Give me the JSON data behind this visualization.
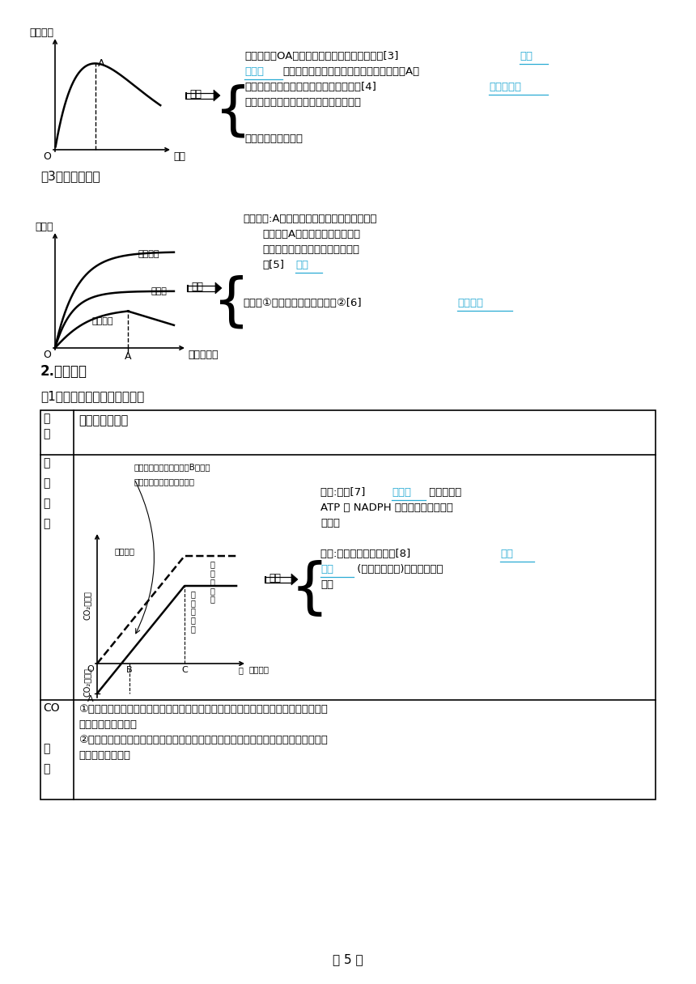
{
  "bg": "#ffffff",
  "page_num": "第 5 页",
  "cyan": "#29ABD4",
  "black": "#000000",
  "g1_ylabel": "光合速率",
  "g1_xlabel": "叶龄",
  "g2_ylabel": "物质量",
  "g2_xlabel": "叶面积指数",
  "g2_labels": [
    "总光合量",
    "呼吸量",
    "干物质量"
  ],
  "sec3_title": "（3）叶面积指数",
  "sec2_title": "2.外部因素",
  "sec2_sub": "（1）单因素对光合作用的影响",
  "table_h1": "因\n素",
  "table_h2": "曲线分析及应用",
  "row1_label": "光\n照\n强\n度",
  "row2_label": "CO\n\n浓\n度",
  "jieda": "解读",
  "note1_a": "①补偿点：使光合速率与呼吸速率相等的光照强度（或二氧化碳浓度）叫光补偿点（或",
  "note1_b": "二氧化碳补偿点）。",
  "note2_a": "②饱和点：使光合速率达到最大时的最小光照强度（或二氧化碳浓度）叫光饱和点（或",
  "note2_b": "二氧化碳饱和点）"
}
